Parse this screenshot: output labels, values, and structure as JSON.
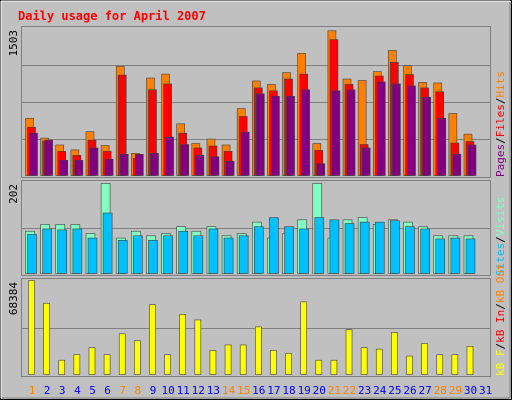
{
  "chart_data": {
    "type": "bar",
    "title": "Daily usage for April 2007",
    "days": [
      "1",
      "2",
      "3",
      "4",
      "5",
      "6",
      "7",
      "8",
      "9",
      "10",
      "11",
      "12",
      "13",
      "14",
      "15",
      "16",
      "17",
      "18",
      "19",
      "20",
      "21",
      "22",
      "23",
      "24",
      "25",
      "26",
      "27",
      "28",
      "29",
      "30",
      "31"
    ],
    "weekend_days": [
      "1",
      "7",
      "8",
      "14",
      "15",
      "21",
      "22",
      "28",
      "29"
    ],
    "panels": [
      {
        "name": "top",
        "max_label": "1503",
        "ylim": [
          0,
          1503
        ],
        "series": [
          {
            "name": "Hits",
            "color": "#ff8000",
            "values": [
              590,
              390,
              320,
              270,
              455,
              315,
              1120,
              235,
              1000,
              1040,
              535,
              335,
              380,
              320,
              690,
              970,
              935,
              1055,
              1250,
              335,
              1480,
              990,
              975,
              1065,
              1280,
              1125,
              955,
              950,
              640,
              430
            ]
          },
          {
            "name": "Files",
            "color": "#ff0000",
            "values": [
              500,
              360,
              255,
              215,
              370,
              255,
              1030,
              185,
              880,
              940,
              440,
              290,
              310,
              255,
              610,
              900,
              870,
              990,
              1040,
              265,
              1390,
              935,
              325,
              1020,
              1160,
              1035,
              900,
              860,
              340,
              355
            ]
          },
          {
            "name": "Pages",
            "color": "#800080",
            "values": [
              440,
              370,
              165,
              165,
              290,
              175,
              225,
              225,
              235,
              400,
              325,
              215,
              200,
              155,
              450,
              840,
              815,
              815,
              880,
              130,
              870,
              880,
              290,
              960,
              940,
              920,
              805,
              590,
              225,
              320
            ]
          }
        ]
      },
      {
        "name": "middle",
        "max_label": "202",
        "ylim": [
          0,
          202
        ],
        "series": [
          {
            "name": "Visits",
            "color": "#80ffc0",
            "values": [
              95,
              110,
              110,
              110,
              90,
              200,
              80,
              95,
              85,
              90,
              105,
              95,
              105,
              85,
              90,
              115,
              80,
              90,
              120,
              200,
              80,
              120,
              125,
              110,
              120,
              115,
              105,
              85,
              85,
              85
            ]
          },
          {
            "name": "Sites",
            "color": "#00c0ff",
            "values": [
              88,
              100,
              98,
              100,
              80,
              135,
              75,
              85,
              75,
              85,
              95,
              85,
              100,
              80,
              85,
              105,
              125,
              105,
              100,
              125,
              120,
              112,
              115,
              115,
              118,
              105,
              100,
              78,
              80,
              78
            ]
          }
        ]
      },
      {
        "name": "bottom",
        "max_label": "68384",
        "ylim": [
          0,
          68384
        ],
        "series": [
          {
            "name": "KBytes",
            "color": "#ffff00",
            "values": [
              68384,
              52000,
              11000,
              15000,
              20000,
              15000,
              30000,
              25000,
              51000,
              15000,
              44000,
              40000,
              18000,
              22000,
              22000,
              35000,
              18000,
              16000,
              53000,
              11000,
              11000,
              33000,
              20000,
              19000,
              31000,
              14000,
              23000,
              15000,
              15000,
              21000
            ]
          }
        ]
      }
    ],
    "legend_top": [
      "Pages",
      "/",
      "Files",
      "/",
      "Hits"
    ],
    "legend_mid": [
      "Sites",
      "/",
      "Visits"
    ],
    "legend_bot": [
      "kB F",
      "/",
      "kB In",
      "/",
      "kB Out"
    ],
    "colors": {
      "background": "#c0c0c0",
      "title": "#ff0000",
      "weekday": "#0000ff",
      "weekend": "#ff8000",
      "hits": "#ff8000",
      "files": "#ff0000",
      "pages": "#800080",
      "visits": "#80ffc0",
      "sites": "#00c0ff",
      "kbf": "#ffff00",
      "kbin": "#ff0000",
      "kbout": "#ff8000"
    }
  }
}
